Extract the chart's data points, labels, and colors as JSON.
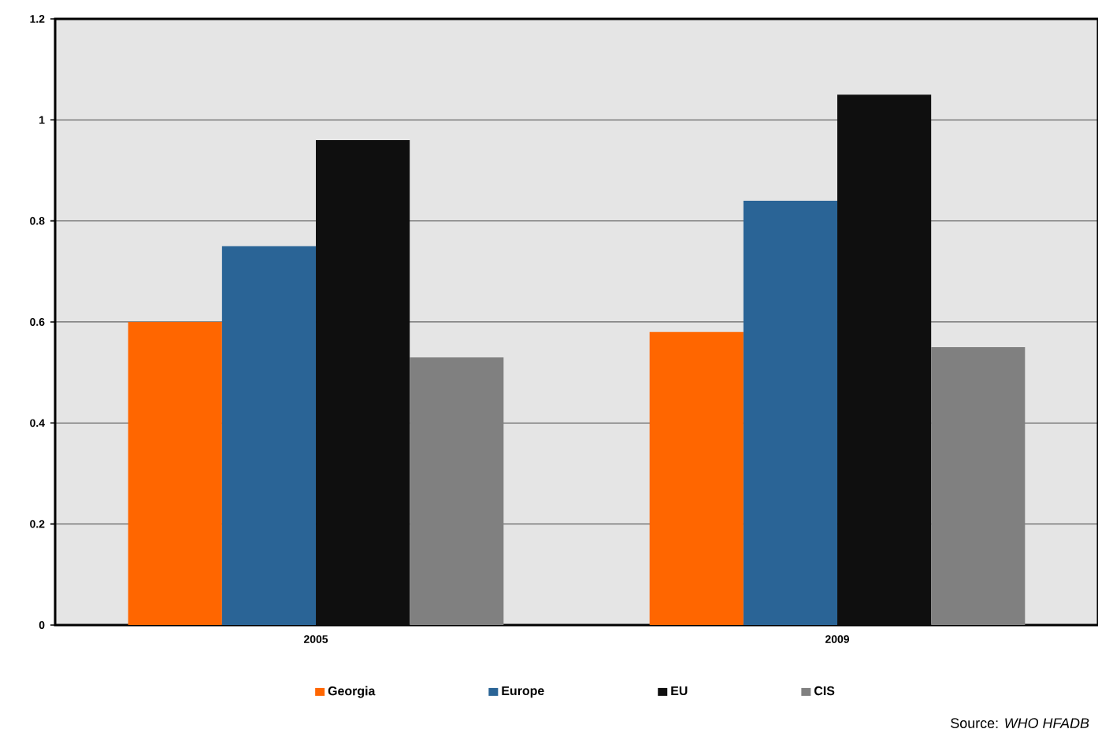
{
  "chart_data": {
    "type": "bar",
    "categories": [
      "2005",
      "2009"
    ],
    "series": [
      {
        "name": "Georgia",
        "color": "#ff6600",
        "values": [
          0.6,
          0.58
        ]
      },
      {
        "name": "Europe",
        "color": "#2a6496",
        "values": [
          0.75,
          0.84
        ]
      },
      {
        "name": "EU",
        "color": "#0f0f0f",
        "values": [
          0.96,
          1.05
        ]
      },
      {
        "name": "CIS",
        "color": "#808080",
        "values": [
          0.53,
          0.55
        ]
      }
    ],
    "ylim": [
      0,
      1.2
    ],
    "yticks": [
      0,
      0.2,
      0.4,
      0.6,
      0.8,
      1,
      1.2
    ],
    "grid": "y",
    "legend": "bottom",
    "annotations": [
      "Source: *WHO HFADB*"
    ]
  }
}
